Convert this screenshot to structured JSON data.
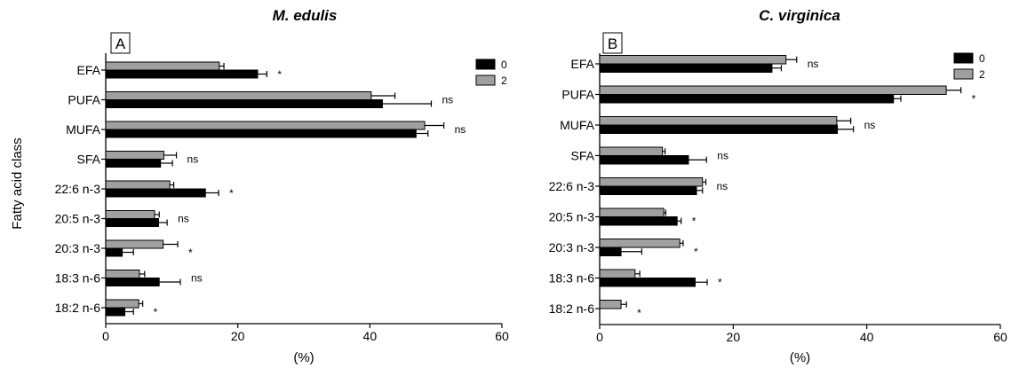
{
  "figure": {
    "ylabel": "Fatty acid class",
    "xlabel": "(%)"
  },
  "chart_data": [
    {
      "type": "bar",
      "orientation": "horizontal",
      "panel_label": "A",
      "title": "M. edulis",
      "xlabel": "(%)",
      "ylabel": "Fatty acid class",
      "xlim": [
        0,
        60
      ],
      "xticks": [
        "0",
        "20",
        "40",
        "60"
      ],
      "grid": false,
      "legend_position": "top-right",
      "categories": [
        "EFA",
        "PUFA",
        "MUFA",
        "SFA",
        "22:6 n-3",
        "20:5 n-3",
        "20:3 n-3",
        "18:3 n-6",
        "18:2 n-6"
      ],
      "series": [
        {
          "name": "2",
          "color": "#a0a0a0",
          "values": [
            17.2,
            40.2,
            48.3,
            8.8,
            9.7,
            7.4,
            8.7,
            5.1,
            5.0
          ],
          "errors": [
            0.7,
            3.6,
            2.9,
            1.9,
            0.6,
            0.7,
            2.2,
            0.8,
            0.6
          ]
        },
        {
          "name": "0",
          "color": "#000000",
          "values": [
            23.0,
            41.9,
            47.0,
            8.3,
            15.1,
            8.0,
            2.5,
            8.1,
            2.9
          ],
          "errors": [
            1.4,
            7.4,
            1.8,
            1.8,
            2.0,
            1.3,
            1.7,
            3.2,
            1.3
          ]
        }
      ],
      "annotations": [
        "*",
        "ns",
        "ns",
        "ns",
        "*",
        "ns",
        "*",
        "ns",
        "*"
      ]
    },
    {
      "type": "bar",
      "orientation": "horizontal",
      "panel_label": "B",
      "title": "C. virginica",
      "xlabel": "(%)",
      "ylabel": "",
      "xlim": [
        0,
        60
      ],
      "xticks": [
        "0",
        "20",
        "40",
        "60"
      ],
      "grid": false,
      "legend_position": "top-right",
      "categories": [
        "EFA",
        "PUFA",
        "MUFA",
        "SFA",
        "22:6 n-3",
        "20:5 n-3",
        "20:3 n-3",
        "18:3 n-6",
        "18:2 n-6"
      ],
      "series": [
        {
          "name": "2",
          "color": "#a0a0a0",
          "values": [
            27.9,
            51.9,
            35.5,
            9.4,
            15.4,
            9.6,
            12.0,
            5.3,
            3.2
          ],
          "errors": [
            1.6,
            2.2,
            2.1,
            0.4,
            0.5,
            0.3,
            0.5,
            0.7,
            0.8
          ]
        },
        {
          "name": "0",
          "color": "#000000",
          "values": [
            25.8,
            44.0,
            35.6,
            13.3,
            14.5,
            11.6,
            3.2,
            14.3,
            0.0
          ],
          "errors": [
            1.4,
            1.1,
            2.4,
            2.7,
            0.9,
            0.6,
            3.1,
            1.8,
            0.0
          ]
        }
      ],
      "annotations": [
        "ns",
        "*",
        "ns",
        "ns",
        "ns",
        "*",
        "*",
        "*",
        "*"
      ]
    }
  ]
}
